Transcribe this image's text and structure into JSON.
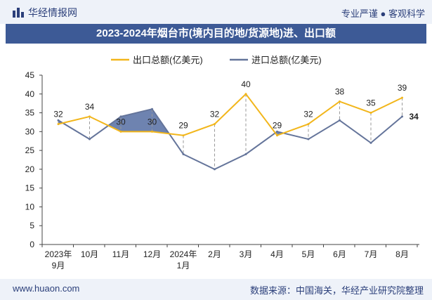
{
  "header": {
    "brand": "华经情报网",
    "tagline": "专业严谨 ● 客观科学"
  },
  "title": "2023-2024年烟台市(境内目的地/货源地)进、出口额",
  "footer": {
    "url": "www.huaon.com",
    "source": "数据来源：中国海关，华经产业研究院整理"
  },
  "colors": {
    "export": "#f2b61b",
    "import": "#64749a",
    "area": "#3d5a96",
    "header_bg": "#eef2f9",
    "title_bg": "#3d5a96"
  },
  "chart_data": {
    "type": "line",
    "categories": [
      "2023年9月",
      "10月",
      "11月",
      "12月",
      "2024年1月",
      "2月",
      "3月",
      "4月",
      "5月",
      "6月",
      "7月",
      "8月"
    ],
    "series": [
      {
        "name": "出口总额(亿美元)",
        "values": [
          32,
          34,
          30,
          30,
          29,
          32,
          40,
          29,
          32,
          38,
          35,
          39
        ],
        "data_labels": [
          "32",
          "34",
          "30",
          "30",
          "29",
          "32",
          "40",
          "29",
          "32",
          "38",
          "35",
          "39"
        ]
      },
      {
        "name": "进口总额(亿美元)",
        "values": [
          33,
          28,
          34,
          36,
          24,
          20,
          24,
          30,
          28,
          33,
          27,
          34
        ],
        "data_labels": [
          "",
          "",
          "",
          "",
          "",
          "",
          "",
          "",
          "",
          "",
          "",
          "34"
        ]
      }
    ],
    "ylim": [
      0,
      45
    ],
    "yticks": [
      "0",
      "5",
      "10",
      "15",
      "20",
      "25",
      "30",
      "35",
      "40",
      "45"
    ],
    "legend_position": "top",
    "grid": false
  }
}
